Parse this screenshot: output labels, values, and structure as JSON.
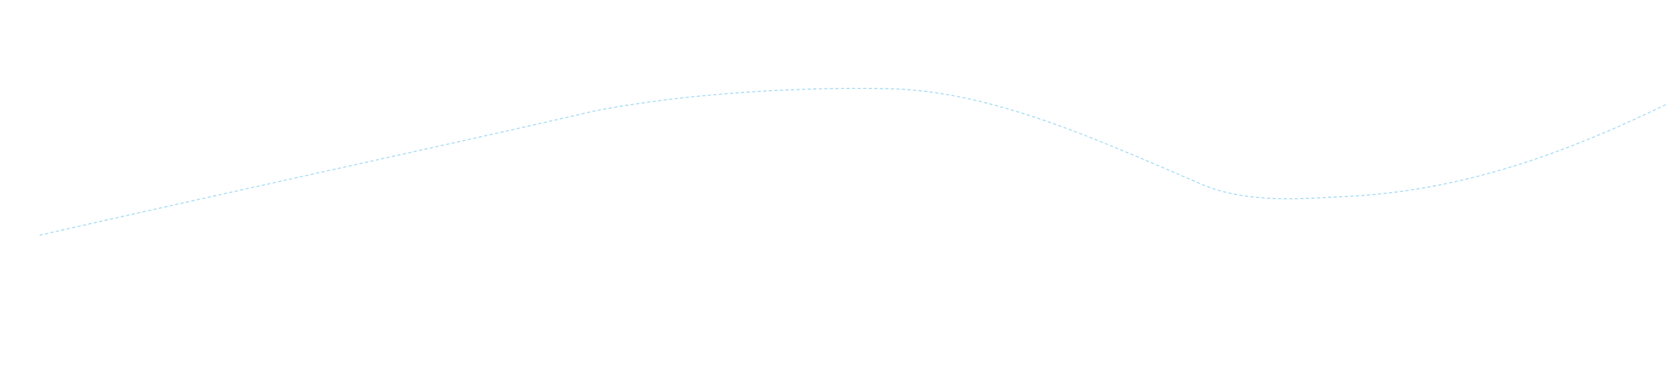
{
  "decoration": {
    "wave_line_color": "#a9dcf5"
  }
}
